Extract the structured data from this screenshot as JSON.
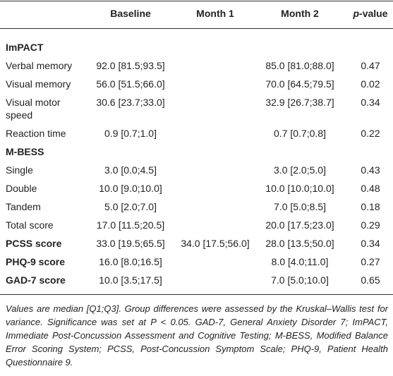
{
  "header": {
    "baseline": "Baseline",
    "month1": "Month 1",
    "month2": "Month 2",
    "p_value": {
      "italic": "p",
      "rest": "-value"
    }
  },
  "table": {
    "rows": [
      {
        "section": "ImPACT"
      },
      {
        "label": "Verbal memory",
        "baseline": "92.0 [81.5;93.5]",
        "month2": "85.0 [81.0;88.0]",
        "p": "0.47"
      },
      {
        "label": "Visual memory",
        "baseline": "56.0 [51.5;66.0]",
        "month2": "70.0 [64.5;79.5]",
        "p": "0.02"
      },
      {
        "label": "Visual motor speed",
        "baseline": "30.6 [23.7;33.0]",
        "month2": "32.9 [26.7;38.7]",
        "p": "0.34"
      },
      {
        "label": "Reaction time",
        "baseline": "0.9 [0.7;1.0]",
        "month2": "0.7 [0.7;0.8]",
        "p": "0.22"
      },
      {
        "section": "M-BESS"
      },
      {
        "label": "Single",
        "baseline": "3.0 [0.0;4.5]",
        "month2": "3.0 [2.0;5.0]",
        "p": "0.43"
      },
      {
        "label": "Double",
        "baseline": "10.0 [9.0;10.0]",
        "month2": "10.0 [10.0;10.0]",
        "p": "0.48"
      },
      {
        "label": "Tandem",
        "baseline": "5.0 [2.0;7.0]",
        "month2": "7.0 [5.0;8.5]",
        "p": "0.18"
      },
      {
        "label": "Total score",
        "baseline": "17.0 [11.5;20.5]",
        "month2": "20.0 [17.5;23.0]",
        "p": "0.29"
      },
      {
        "label": "PCSS score",
        "bold": true,
        "baseline": "33.0 [19.5;65.5]",
        "month1": "34.0 [17.5;56.0]",
        "month2": "28.0 [13.5;50.0]",
        "p": "0.34"
      },
      {
        "label": "PHQ-9 score",
        "bold": true,
        "baseline": "16.0 [8.0;16.5]",
        "month2": "8.0 [4.0;11.0]",
        "p": "0.27"
      },
      {
        "label": "GAD-7 score",
        "bold": true,
        "baseline": "10.0 [3.5;17.5]",
        "month2": "7.0 [5.0;10.0]",
        "p": "0.65"
      }
    ]
  },
  "footnote": "Values are median [Q1;Q3]. Group differences were assessed by the Kruskal–Wallis test for variance. Significance was set at P < 0.05. GAD-7, General Anxiety Disorder 7; ImPACT, Immediate Post-Concussion Assessment and Cognitive Testing; M-BESS, Modified Balance Error Scoring System; PCSS, Post-Concussion Symptom Scale; PHQ-9, Patient Health Questionnaire 9."
}
